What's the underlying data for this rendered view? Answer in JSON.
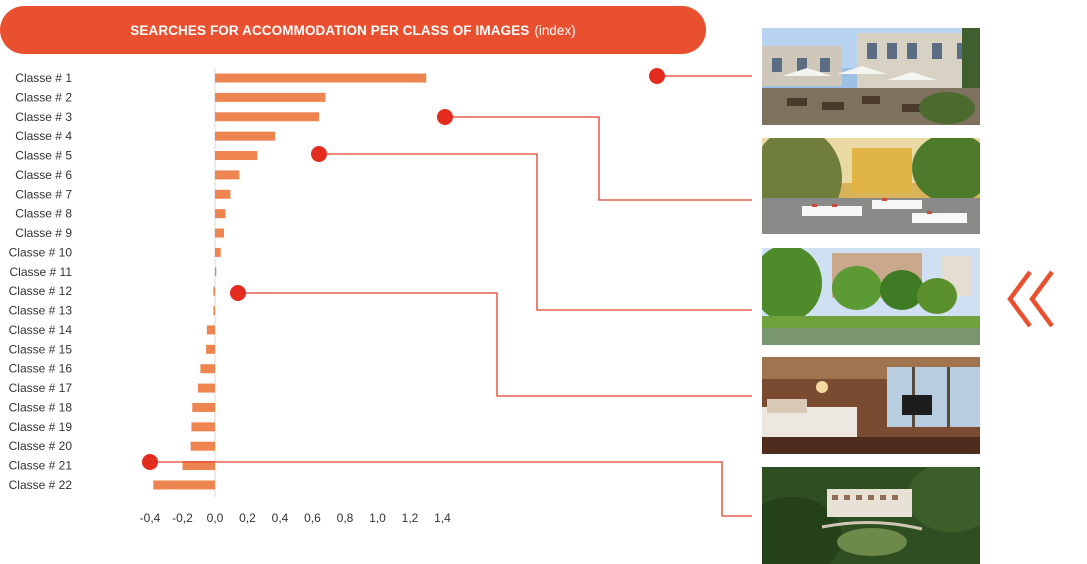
{
  "title": {
    "main": "SEARCHES FOR ACCOMMODATION PER CLASS OF IMAGES",
    "sub": "(index)"
  },
  "colors": {
    "accent": "#e9502f",
    "bar": "#ee8550",
    "marker": "#e32b1f",
    "connector": "#e0402a"
  },
  "chart_data": {
    "type": "bar",
    "orientation": "horizontal",
    "title": "SEARCHES FOR ACCOMMODATION PER CLASS OF IMAGES (index)",
    "categories": [
      "Classe  # 1",
      "Classe  # 2",
      "Classe  # 3",
      "Classe  # 4",
      "Classe  # 5",
      "Classe  # 6",
      "Classe  # 7",
      "Classe  # 8",
      "Classe  # 9",
      "Classe  # 10",
      "Classe  # 11",
      "Classe  # 12",
      "Classe  # 13",
      "Classe  # 14",
      "Classe  # 15",
      "Classe  # 16",
      "Classe  # 17",
      "Classe  # 18",
      "Classe  # 19",
      "Classe  # 20",
      "Classe  # 21",
      "Classe  # 22"
    ],
    "values": [
      1.3,
      0.68,
      0.64,
      0.37,
      0.26,
      0.15,
      0.095,
      0.065,
      0.055,
      0.035,
      0.008,
      -0.01,
      -0.01,
      -0.05,
      -0.055,
      -0.09,
      -0.105,
      -0.14,
      -0.145,
      -0.15,
      -0.2,
      -0.38
    ],
    "xlim": [
      -0.4,
      1.6
    ],
    "xticks": [
      "-0,4",
      "-0,2",
      "0,0",
      "0,2",
      "0,4",
      "0,6",
      "0,8",
      "1,0",
      "1,2",
      "1,4"
    ],
    "grid": false,
    "highlighted": [
      {
        "category": "Classe  # 1",
        "photo": 1
      },
      {
        "category": "Classe  # 3",
        "photo": 2
      },
      {
        "category": "Classe  # 5",
        "photo": 3
      },
      {
        "category": "Classe  # 12",
        "photo": 4
      },
      {
        "category": "Classe  # 21",
        "photo": 5
      }
    ]
  },
  "photos": [
    {
      "name": "terrace-with-umbrellas-photo"
    },
    {
      "name": "garden-dining-tables-photo"
    },
    {
      "name": "lakeside-hotel-photo"
    },
    {
      "name": "hotel-bedroom-photo"
    },
    {
      "name": "aerial-hotel-photo"
    }
  ],
  "icons": {
    "nav": "double-chevron-left-icon"
  }
}
